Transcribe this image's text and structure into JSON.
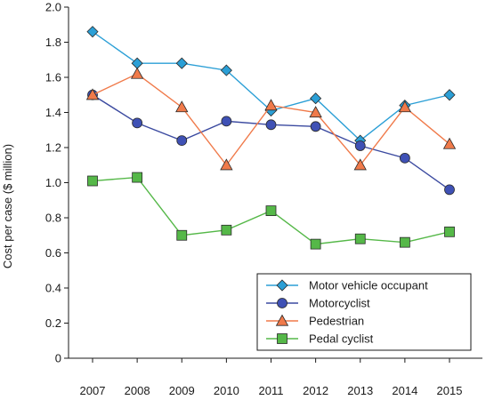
{
  "chart_data": {
    "type": "line",
    "title": "",
    "xlabel": "",
    "ylabel": "Cost per case ($ million)",
    "x": [
      "2007",
      "2008",
      "2009",
      "2010",
      "2011",
      "2012",
      "2013",
      "2014",
      "2015"
    ],
    "yticks": [
      "0",
      "0.2",
      "0.4",
      "0.6",
      "0.8",
      "1.0",
      "1.2",
      "1.4",
      "1.6",
      "1.8",
      "2.0"
    ],
    "ylim": [
      0,
      2.0
    ],
    "grid": false,
    "legend_position": "bottom-right",
    "series": [
      {
        "name": "Motor vehicle occupant",
        "marker": "diamond",
        "line_color": "#2b9fd6",
        "marker_fill": "#2b9fd6",
        "values": [
          1.86,
          1.68,
          1.68,
          1.64,
          1.41,
          1.48,
          1.24,
          1.44,
          1.5
        ]
      },
      {
        "name": "Motorcyclist",
        "marker": "circle",
        "line_color": "#3b4aa0",
        "marker_fill": "#3f51b5",
        "values": [
          1.5,
          1.34,
          1.24,
          1.35,
          1.33,
          1.32,
          1.21,
          1.14,
          0.96
        ]
      },
      {
        "name": "Pedestrian",
        "marker": "triangle",
        "line_color": "#f07a4a",
        "marker_fill": "#f07a4a",
        "values": [
          1.5,
          1.62,
          1.43,
          1.1,
          1.44,
          1.4,
          1.1,
          1.43,
          1.22
        ]
      },
      {
        "name": "Pedal cyclist",
        "marker": "square",
        "line_color": "#55b848",
        "marker_fill": "#55b848",
        "values": [
          1.01,
          1.03,
          0.7,
          0.73,
          0.84,
          0.65,
          0.68,
          0.66,
          0.72
        ]
      }
    ]
  }
}
